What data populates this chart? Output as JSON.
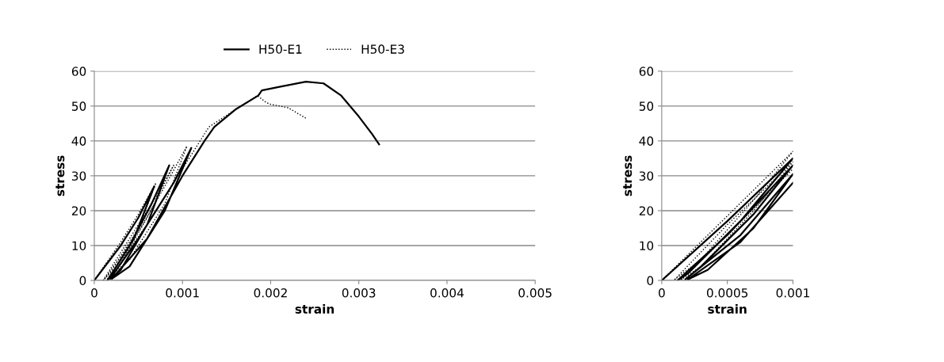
{
  "chart_data": [
    {
      "type": "line",
      "xlabel": "strain",
      "ylabel": "stress",
      "xlim": [
        0,
        0.005
      ],
      "xticks": [
        0,
        0.001,
        0.002,
        0.003,
        0.004,
        0.005
      ],
      "ylim": [
        0,
        60
      ],
      "yticks": [
        0,
        10,
        20,
        30,
        40,
        50,
        60
      ],
      "grid": "y",
      "legend": "top",
      "marker": "none",
      "series": [
        {
          "name": "H50-E1",
          "color": "#000000",
          "line_style": "solid",
          "x": [
            0,
            0.0003,
            0.0005,
            0.00068,
            0.00045,
            0.0002,
            0.00015,
            0.0004,
            0.00065,
            0.00085,
            0.0006,
            0.0003,
            0.00018,
            0.0005,
            0.0009,
            0.0011,
            0.0008,
            0.0004,
            0.0002,
            0.0006,
            0.001,
            0.00125,
            0.00136,
            0.0016,
            0.00186,
            0.0019,
            0.0021,
            0.0024,
            0.0026,
            0.0028,
            0.003,
            0.00315,
            0.00323
          ],
          "values": [
            0,
            10,
            18,
            27,
            12,
            2,
            0,
            10,
            22,
            33,
            16,
            3,
            0.5,
            12,
            28,
            38,
            20,
            4,
            0.5,
            12,
            30,
            40,
            44,
            49,
            53,
            54.5,
            55.5,
            57,
            56.5,
            53,
            47,
            42,
            39
          ]
        },
        {
          "name": "H50-E3",
          "color": "#000000",
          "line_style": "dotted",
          "x": [
            0,
            0.0003,
            0.0005,
            0.0007,
            0.0005,
            0.0002,
            0.0001,
            0.0004,
            0.0007,
            0.0009,
            0.0006,
            0.0003,
            0.00012,
            0.0005,
            0.0008,
            0.00105,
            0.0008,
            0.0004,
            0.00015,
            0.0006,
            0.001,
            0.0013,
            0.0016,
            0.00185,
            0.00195,
            0.002,
            0.0022,
            0.0024
          ],
          "values": [
            0,
            11,
            19,
            28,
            15,
            3,
            0,
            12,
            24,
            33,
            18,
            5,
            0.5,
            14,
            27,
            38.5,
            22,
            6,
            0.5,
            16,
            32,
            44,
            49,
            53,
            51,
            50.5,
            49.5,
            46.5
          ]
        }
      ]
    },
    {
      "type": "line",
      "xlabel": "strain",
      "ylabel": "stress",
      "xlim": [
        0,
        0.001
      ],
      "xticks": [
        0,
        0.0005,
        0.001
      ],
      "ylim": [
        0,
        60
      ],
      "yticks": [
        0,
        10,
        20,
        30,
        40,
        50,
        60
      ],
      "grid": "y",
      "marker": "none",
      "series": [
        {
          "color": "#000000",
          "line_style": "solid",
          "x": [
            0,
            0.0005,
            0.001,
            0.0006,
            0.0002,
            0.00012,
            0.0005,
            0.001,
            0.0007,
            0.0003,
            0.00018,
            0.0006,
            0.001,
            0.0007,
            0.00035,
            0.0002,
            0.0006,
            0.001
          ],
          "values": [
            0,
            17,
            35,
            17,
            2,
            0,
            13,
            33,
            19,
            4,
            0.3,
            13,
            30.5,
            15,
            3,
            0.3,
            11,
            28
          ]
        },
        {
          "color": "#000000",
          "line_style": "dotted",
          "x": [
            0,
            0.0005,
            0.001,
            0.0007,
            0.0003,
            0.0001,
            0.0005,
            0.001,
            0.0007,
            0.0003,
            0.00015,
            0.0005,
            0.001
          ],
          "values": [
            0,
            18.5,
            37,
            23,
            6,
            0.3,
            16,
            34,
            20,
            4,
            0.3,
            13,
            32
          ]
        }
      ]
    }
  ]
}
